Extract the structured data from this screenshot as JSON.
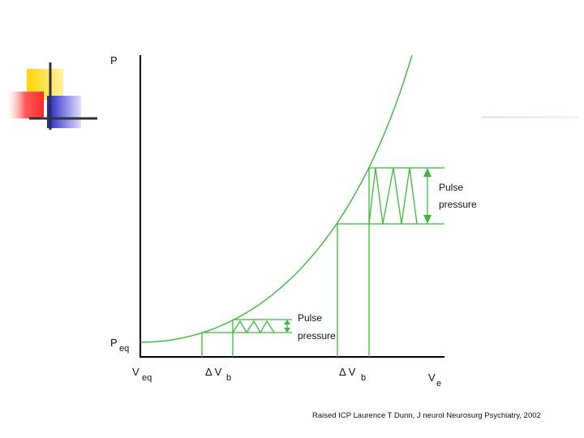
{
  "diagram": {
    "y_axis_label": "P",
    "y_origin_label_main": "P",
    "y_origin_label_sub": "eq",
    "x_origin_label_main": "V",
    "x_origin_label_sub": "eq",
    "x_axis_label_main": "V",
    "x_axis_label_sub": "e",
    "delta_low_main": "Δ V",
    "delta_low_sub": "b",
    "delta_high_main": "Δ V",
    "delta_high_sub": "b",
    "pulse_low_line1": "Pulse",
    "pulse_low_line2": "pressure",
    "pulse_high_line1": "Pulse",
    "pulse_high_line2": "pressure",
    "curve_color": "#3cb83c",
    "axis_color": "#000000"
  },
  "citation": "Raised ICP Laurence T Dunn, J neurol Neurosurg Psychiatry, 2002",
  "decoration": {
    "colors": [
      "#ffd700",
      "#ff3b3b",
      "#2222cc",
      "#333333"
    ]
  }
}
